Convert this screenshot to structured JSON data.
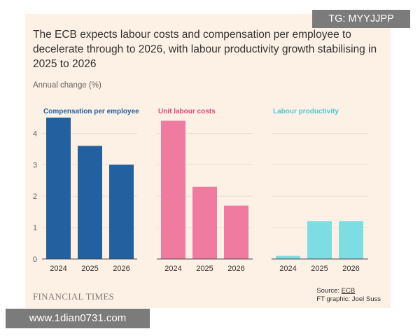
{
  "title": "The ECB expects labour costs and compensation per employee to decelerate through to 2026, with labour productivity growth stabilising in 2025 to 2026",
  "ylabel": "Annual change (%)",
  "footer": {
    "brand": "FINANCIAL TIMES",
    "source_prefix": "Source: ",
    "source_link": "ECB",
    "credit": "FT graphic: Joel Suss"
  },
  "watermarks": {
    "top": "TG: MYYJJPP",
    "bottom": "www.1dian0731.com"
  },
  "colors": {
    "compensation": "#23609f",
    "unit_labour": "#f07ba1",
    "productivity": "#7ddde2",
    "grid": "#e6ddd2",
    "text": "#33302e"
  },
  "chart_data": {
    "type": "bar",
    "categories": [
      "2024",
      "2025",
      "2026"
    ],
    "ylim": [
      0,
      4.5
    ],
    "yticks": [
      0,
      1,
      2,
      3,
      4
    ],
    "ylabel": "Annual change (%)",
    "legend_position": "top of each panel",
    "series": [
      {
        "name": "Compensation per employee",
        "values": [
          4.5,
          3.6,
          3.0
        ],
        "color": "#23609f",
        "label_color": "#23609f"
      },
      {
        "name": "Unit labour costs",
        "values": [
          4.4,
          2.3,
          1.7
        ],
        "color": "#f07ba1",
        "label_color": "#e2457a"
      },
      {
        "name": "Labour productivity",
        "values": [
          0.1,
          1.2,
          1.2
        ],
        "color": "#7ddde2",
        "label_color": "#52c6cf"
      }
    ]
  }
}
